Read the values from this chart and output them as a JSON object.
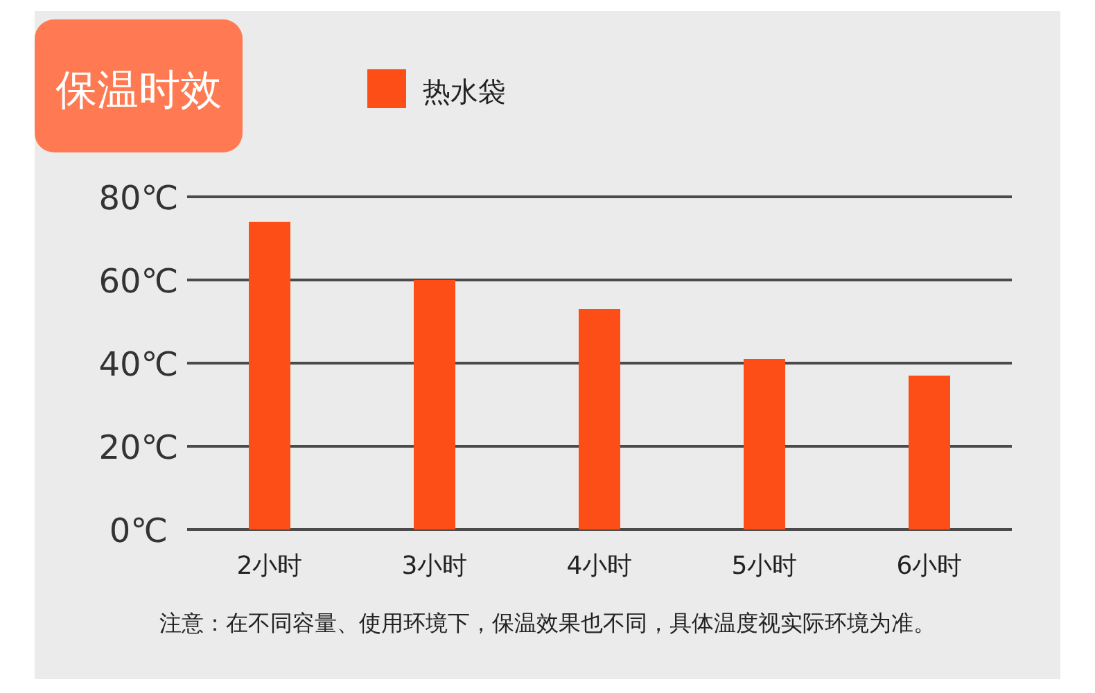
{
  "chart_data": {
    "type": "bar",
    "title": "保温时效",
    "categories": [
      "2小时",
      "3小时",
      "4小时",
      "5小时",
      "6小时"
    ],
    "series": [
      {
        "name": "热水袋",
        "color": "#fd4e17",
        "values": [
          74,
          60,
          53,
          41,
          37
        ]
      }
    ],
    "ylim": [
      0,
      80
    ],
    "yticks": [
      {
        "value": 0,
        "label": "0℃"
      },
      {
        "value": 20,
        "label": "20℃"
      },
      {
        "value": 40,
        "label": "40℃"
      },
      {
        "value": 60,
        "label": "60℃"
      },
      {
        "value": 80,
        "label": "80℃"
      }
    ],
    "grid": "y",
    "legend": "top",
    "annotations": [
      "注意：在不同容量、使用环境下，保温效果也不同，具体温度视实际环境为准。"
    ]
  }
}
